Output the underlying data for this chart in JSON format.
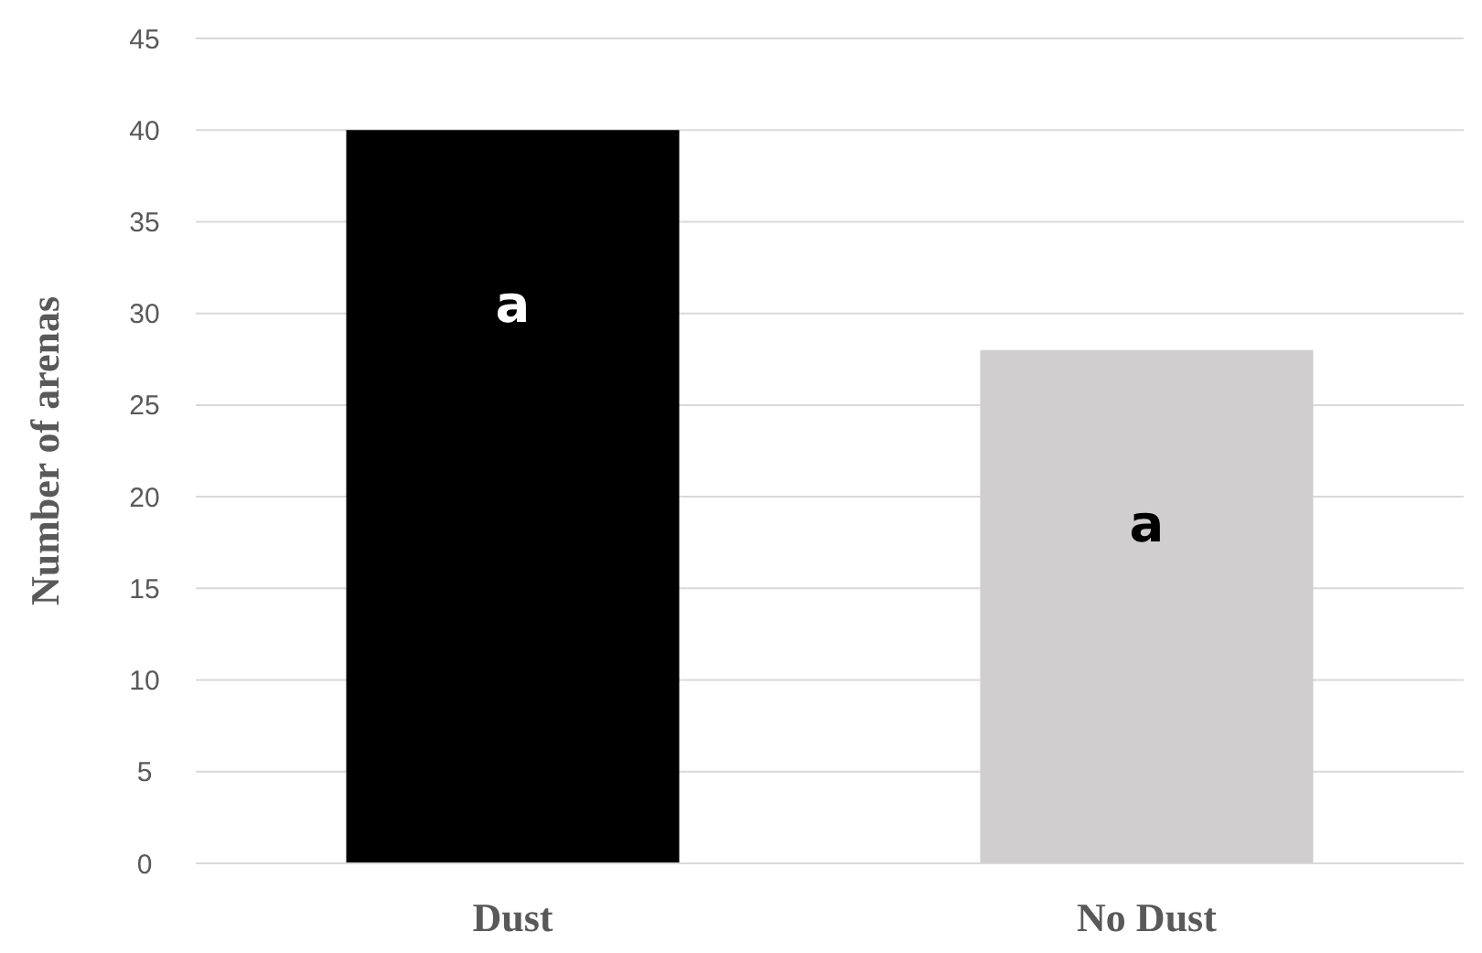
{
  "chart_data": {
    "type": "bar",
    "ylabel": "Number of arenas",
    "categories": [
      "Dust",
      "No Dust"
    ],
    "values": [
      40,
      28
    ],
    "colors": [
      "#000000",
      "#d0cece"
    ],
    "ylim": [
      0,
      45
    ],
    "yticks": [
      0,
      5,
      10,
      15,
      20,
      25,
      30,
      35,
      40,
      45
    ],
    "grid": "y",
    "annotations": [
      "a",
      "a"
    ]
  }
}
